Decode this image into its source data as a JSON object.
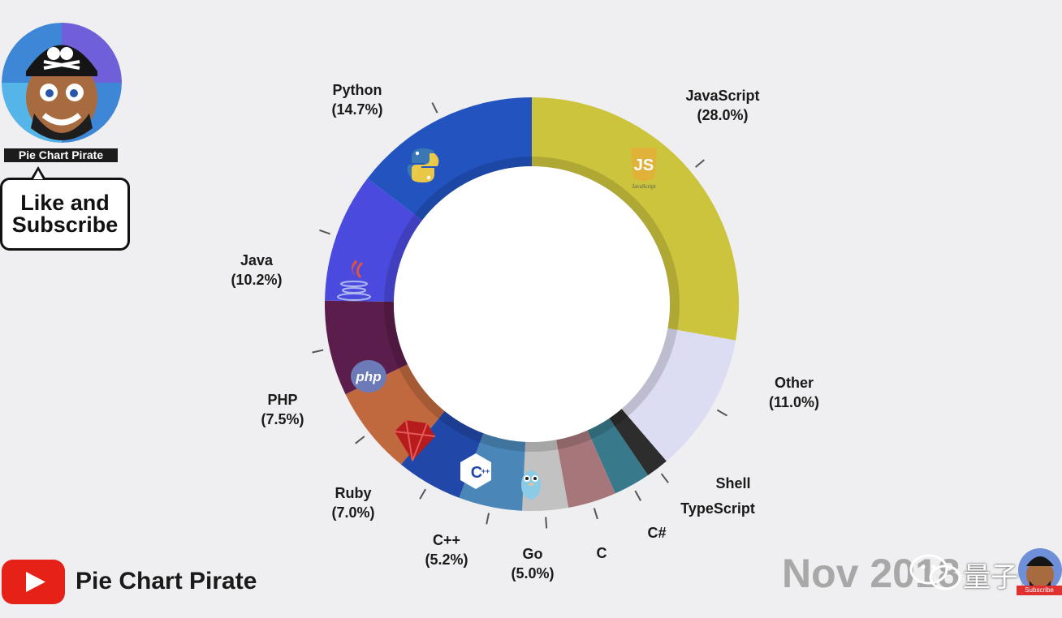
{
  "channel": {
    "name": "Pie Chart Pirate",
    "bubble_line1": "Like and",
    "bubble_line2": "Subscribe",
    "yt_name": "Pie Chart Pirate",
    "subscribe_badge": "Subscribe"
  },
  "date_label": "Nov 2018",
  "watermark": "量子位",
  "chart_data": {
    "type": "pie",
    "donut": true,
    "title": "",
    "slices": [
      {
        "label": "JavaScript",
        "value": 28.0,
        "pct_text": "(28.0%)",
        "color": "#cdc43e",
        "icon": "javascript-logo-icon"
      },
      {
        "label": "Other",
        "value": 11.0,
        "pct_text": "(11.0%)",
        "color": "#dcdcf2",
        "icon": ""
      },
      {
        "label": "Shell",
        "value": 1.8,
        "pct_text": "",
        "color": "#2d2d2d",
        "icon": ""
      },
      {
        "label": "TypeScript",
        "value": 2.9,
        "pct_text": "",
        "color": "#387a8c",
        "icon": ""
      },
      {
        "label": "C#",
        "value": 3.8,
        "pct_text": "",
        "color": "#a6767a",
        "icon": ""
      },
      {
        "label": "C",
        "value": 3.6,
        "pct_text": "",
        "color": "#c2c2c2",
        "icon": ""
      },
      {
        "label": "Go",
        "value": 5.0,
        "pct_text": "(5.0%)",
        "color": "#4a87b8",
        "icon": "go-gopher-icon"
      },
      {
        "label": "C++",
        "value": 5.2,
        "pct_text": "(5.2%)",
        "color": "#2147a8",
        "icon": "cplusplus-logo-icon"
      },
      {
        "label": "Ruby",
        "value": 7.0,
        "pct_text": "(7.0%)",
        "color": "#c0693f",
        "icon": "ruby-gem-icon"
      },
      {
        "label": "PHP",
        "value": 7.5,
        "pct_text": "(7.5%)",
        "color": "#5b1d4c",
        "icon": "php-logo-icon"
      },
      {
        "label": "Java",
        "value": 10.2,
        "pct_text": "(10.2%)",
        "color": "#4b4ade",
        "icon": "java-cup-icon"
      },
      {
        "label": "Python",
        "value": 14.7,
        "pct_text": "(14.7%)",
        "color": "#2253bf",
        "icon": "python-logo-icon"
      }
    ],
    "start_angle_deg": 0,
    "direction": "clockwise"
  }
}
